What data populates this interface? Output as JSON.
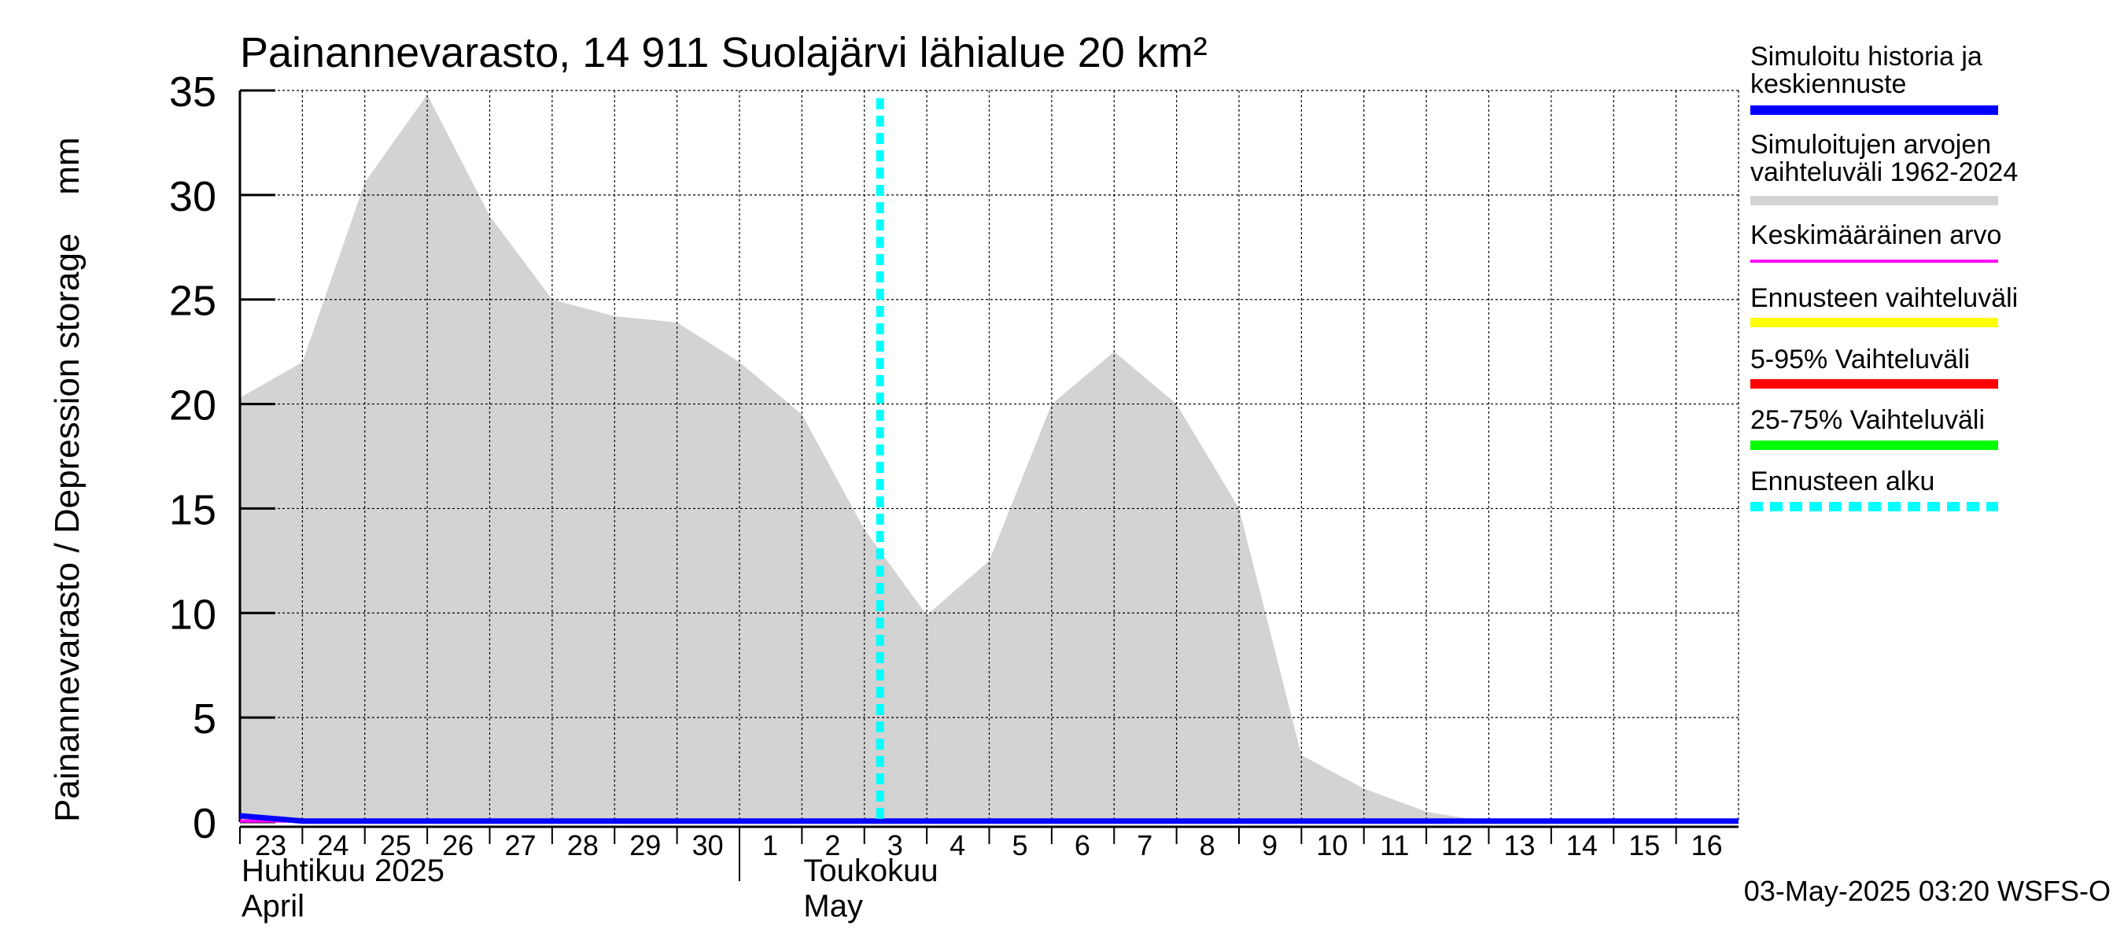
{
  "chart_data": {
    "type": "area",
    "title": "Painannevarasto, 14 911 Suolajärvi lähialue 20 km²",
    "ylabel": "Painannevarasto / Depression storage    mm",
    "ylim": [
      0,
      35
    ],
    "yticks": [
      "0",
      "5",
      "10",
      "15",
      "20",
      "25",
      "30",
      "35"
    ],
    "x_range": [
      "2025-04-23",
      "2025-05-17"
    ],
    "day_ticks": [
      {
        "date": "2025-04-23",
        "label": "23"
      },
      {
        "date": "2025-04-24",
        "label": "24"
      },
      {
        "date": "2025-04-25",
        "label": "25"
      },
      {
        "date": "2025-04-26",
        "label": "26"
      },
      {
        "date": "2025-04-27",
        "label": "27"
      },
      {
        "date": "2025-04-28",
        "label": "28"
      },
      {
        "date": "2025-04-29",
        "label": "29"
      },
      {
        "date": "2025-04-30",
        "label": "30"
      },
      {
        "date": "2025-05-01",
        "label": "1"
      },
      {
        "date": "2025-05-02",
        "label": "2"
      },
      {
        "date": "2025-05-03",
        "label": "3"
      },
      {
        "date": "2025-05-04",
        "label": "4"
      },
      {
        "date": "2025-05-05",
        "label": "5"
      },
      {
        "date": "2025-05-06",
        "label": "6"
      },
      {
        "date": "2025-05-07",
        "label": "7"
      },
      {
        "date": "2025-05-08",
        "label": "8"
      },
      {
        "date": "2025-05-09",
        "label": "9"
      },
      {
        "date": "2025-05-10",
        "label": "10"
      },
      {
        "date": "2025-05-11",
        "label": "11"
      },
      {
        "date": "2025-05-12",
        "label": "12"
      },
      {
        "date": "2025-05-13",
        "label": "13"
      },
      {
        "date": "2025-05-14",
        "label": "14"
      },
      {
        "date": "2025-05-15",
        "label": "15"
      },
      {
        "date": "2025-05-16",
        "label": "16"
      }
    ],
    "month_labels": [
      {
        "date": "2025-04-23",
        "fi": "Huhtikuu  2025",
        "en": "April"
      },
      {
        "date": "2025-05-02",
        "fi": "Toukokuu",
        "en": "May"
      }
    ],
    "month_boundary": "2025-05-01",
    "series": [
      {
        "name": "Simuloitujen arvojen vaihteluväli 1962-2024",
        "kind": "band",
        "color": "#d3d3d3",
        "x": [
          "2025-04-23",
          "2025-04-24",
          "2025-04-25",
          "2025-04-26",
          "2025-04-27",
          "2025-04-28",
          "2025-04-29",
          "2025-04-30",
          "2025-05-01",
          "2025-05-02",
          "2025-05-03",
          "2025-05-04",
          "2025-05-05",
          "2025-05-06",
          "2025-05-07",
          "2025-05-08",
          "2025-05-09",
          "2025-05-10",
          "2025-05-11",
          "2025-05-12",
          "2025-05-13",
          "2025-05-14",
          "2025-05-15",
          "2025-05-16",
          "2025-05-17"
        ],
        "lower": [
          0,
          0,
          0,
          0,
          0,
          0,
          0,
          0,
          0,
          0,
          0,
          0,
          0,
          0,
          0,
          0,
          0,
          0,
          0,
          0,
          0,
          0,
          0,
          0,
          0
        ],
        "upper": [
          20.3,
          22,
          30.6,
          34.8,
          29,
          25,
          24.2,
          23.9,
          22,
          19.5,
          14,
          9.9,
          12.5,
          20,
          22.5,
          20,
          15,
          3.2,
          1.6,
          0.5,
          0,
          0,
          0,
          0,
          0
        ]
      },
      {
        "name": "Keskimääräinen arvo",
        "kind": "line",
        "color": "#ff00ff",
        "x": [
          "2025-04-23",
          "2025-05-17"
        ],
        "y": [
          0.05,
          0.05
        ]
      },
      {
        "name": "Simuloitu historia ja keskiennuste",
        "kind": "line",
        "color": "#0000ff",
        "x": [
          "2025-04-23",
          "2025-04-24",
          "2025-05-17"
        ],
        "y": [
          0.3,
          0.05,
          0.05
        ]
      }
    ],
    "forecast_start": "2025-05-03",
    "legend": {
      "placement": "right",
      "items": [
        {
          "label": "Simuloitu historia ja\nkeskiennuste",
          "color": "#0000ff",
          "style": "solid"
        },
        {
          "label": "Simuloitujen arvojen\nvaihteluväli 1962-2024",
          "color": "#d3d3d3",
          "style": "solid"
        },
        {
          "label": "Keskimääräinen arvo",
          "color": "#ff00ff",
          "style": "thin"
        },
        {
          "label": "Ennusteen vaihteluväli",
          "color": "#ffff00",
          "style": "solid"
        },
        {
          "label": "5-95% Vaihteluväli",
          "color": "#ff0000",
          "style": "solid"
        },
        {
          "label": "25-75% Vaihteluväli",
          "color": "#00ff00",
          "style": "solid"
        },
        {
          "label": "Ennusteen alku",
          "color": "#00ffff",
          "style": "dashed"
        }
      ]
    },
    "grid": true,
    "footer": "03-May-2025 03:20 WSFS-O"
  }
}
